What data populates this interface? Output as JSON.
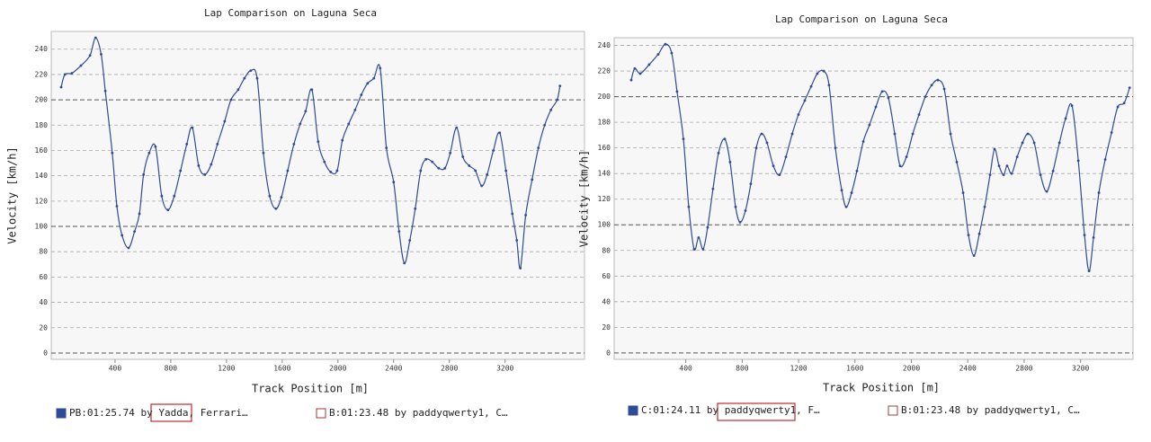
{
  "chart_data": [
    {
      "type": "line",
      "title": "Lap Comparison on Laguna Seca",
      "x_label": "Track Position [m]",
      "y_label": "Velocity [km/h]",
      "xlim": [
        -58,
        3770
      ],
      "ylim": [
        -5,
        254
      ],
      "xticks": [
        400,
        800,
        1200,
        1600,
        2000,
        2400,
        2800,
        3200
      ],
      "yticks": [
        0,
        20,
        40,
        60,
        80,
        100,
        120,
        140,
        160,
        180,
        200,
        220,
        240
      ],
      "grid": true,
      "legend": "bottom",
      "series": [
        {
          "name": "PB:01:25.74 by Yadda, Ferrari…",
          "color": "#2e4b9a",
          "x": [
            13,
            40,
            90,
            155,
            220,
            260,
            300,
            330,
            380,
            413,
            450,
            497,
            540,
            575,
            605,
            645,
            690,
            735,
            780,
            825,
            870,
            915,
            955,
            1000,
            1045,
            1090,
            1135,
            1187,
            1232,
            1284,
            1329,
            1374,
            1420,
            1465,
            1510,
            1555,
            1594,
            1639,
            1684,
            1729,
            1768,
            1813,
            1858,
            1903,
            1948,
            1994,
            2032,
            2077,
            2123,
            2168,
            2213,
            2258,
            2303,
            2348,
            2400,
            2439,
            2477,
            2516,
            2555,
            2594,
            2632,
            2677,
            2723,
            2768,
            2806,
            2852,
            2897,
            2942,
            2987,
            3032,
            3071,
            3116,
            3161,
            3206,
            3252,
            3284,
            3310,
            3348,
            3394,
            3439,
            3484,
            3529,
            3574,
            3594
          ],
          "values": [
            210,
            220,
            221,
            227,
            235,
            249,
            236,
            207,
            158,
            116,
            93,
            83,
            96,
            110,
            141,
            158,
            163,
            124,
            113,
            124,
            144,
            165,
            178,
            148,
            141,
            149,
            165,
            183,
            200,
            208,
            217,
            223,
            217,
            158,
            124,
            114,
            123,
            144,
            165,
            181,
            191,
            208,
            167,
            151,
            143,
            144,
            168,
            181,
            192,
            204,
            213,
            217,
            225,
            162,
            135,
            96,
            71,
            89,
            114,
            144,
            153,
            151,
            146,
            146,
            158,
            178,
            155,
            148,
            144,
            132,
            141,
            160,
            174,
            144,
            110,
            89,
            67,
            109,
            137,
            162,
            180,
            192,
            200,
            211
          ]
        },
        {
          "name": "B:01:23.48 by paddyqwerty1, C…",
          "color": "#a33a3a"
        }
      ]
    },
    {
      "type": "line",
      "title": "Lap Comparison on Laguna Seca",
      "x_label": "Track Position [m]",
      "y_label": "Velocity [km/h]",
      "xlim": [
        -108,
        3572
      ],
      "ylim": [
        -5,
        246
      ],
      "xticks": [
        400,
        800,
        1200,
        1600,
        2000,
        2400,
        2800,
        3200
      ],
      "yticks": [
        0,
        20,
        40,
        60,
        80,
        100,
        120,
        140,
        160,
        180,
        200,
        220,
        240
      ],
      "grid": true,
      "legend": "bottom",
      "series": [
        {
          "name": "C:01:24.11 by paddyqwerty1, F…",
          "color": "#2e4b9a",
          "x": [
            13,
            38,
            77,
            140,
            204,
            255,
            300,
            338,
            383,
            421,
            459,
            491,
            523,
            555,
            593,
            632,
            676,
            714,
            753,
            785,
            823,
            861,
            900,
            938,
            976,
            1021,
            1065,
            1110,
            1155,
            1199,
            1244,
            1289,
            1333,
            1378,
            1416,
            1461,
            1506,
            1538,
            1576,
            1614,
            1659,
            1703,
            1748,
            1793,
            1837,
            1882,
            1920,
            1965,
            2010,
            2054,
            2099,
            2144,
            2188,
            2233,
            2278,
            2322,
            2367,
            2405,
            2444,
            2482,
            2520,
            2558,
            2590,
            2622,
            2654,
            2679,
            2711,
            2750,
            2788,
            2826,
            2871,
            2916,
            2960,
            3005,
            3050,
            3094,
            3139,
            3184,
            3228,
            3260,
            3292,
            3330,
            3375,
            3420,
            3464,
            3509,
            3548
          ],
          "values": [
            213,
            222,
            218,
            225,
            233,
            241,
            234,
            204,
            167,
            114,
            81,
            90,
            81,
            98,
            128,
            156,
            167,
            149,
            114,
            102,
            111,
            132,
            160,
            171,
            164,
            146,
            139,
            153,
            171,
            186,
            197,
            208,
            218,
            220,
            209,
            160,
            127,
            114,
            125,
            142,
            165,
            178,
            192,
            204,
            199,
            171,
            146,
            153,
            171,
            186,
            200,
            209,
            213,
            206,
            171,
            149,
            125,
            92,
            76,
            93,
            114,
            139,
            159,
            146,
            139,
            146,
            140,
            153,
            164,
            171,
            164,
            139,
            126,
            142,
            164,
            183,
            193,
            150,
            92,
            64,
            90,
            125,
            151,
            172,
            192,
            195,
            207
          ]
        },
        {
          "name": "B:01:23.48 by paddyqwerty1, C…",
          "color": "#a33a3a"
        }
      ]
    }
  ]
}
